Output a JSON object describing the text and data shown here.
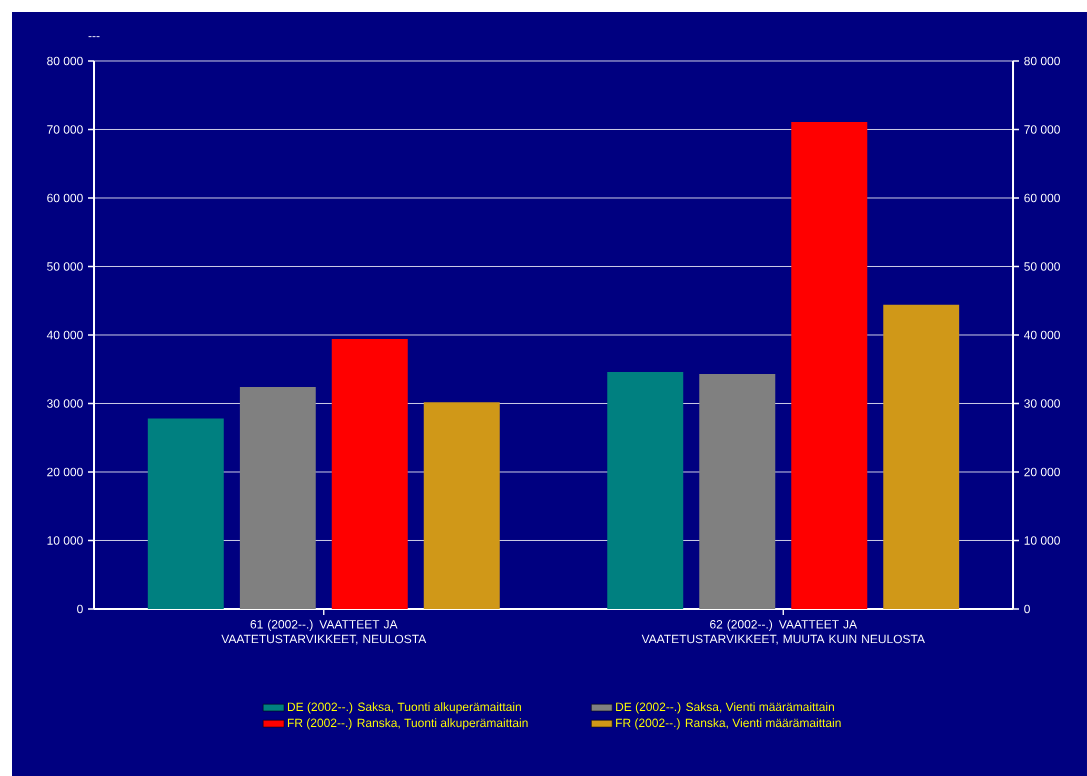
{
  "chart_data": {
    "type": "bar",
    "ylabel": "---",
    "categories": [
      "61 (2002--.) VAATTEET JA VAATETUSTARVIKKEET, NEULOSTA",
      "62 (2002--.) VAATTEET JA VAATETUSTARVIKKEET, MUUTA KUIN NEULOSTA"
    ],
    "series": [
      {
        "name": "DE (2002--.) Saksa, Tuonti alkuperämaittain",
        "color": "#008080",
        "values": [
          27800,
          34600
        ]
      },
      {
        "name": "DE (2002--.) Saksa, Vienti määrämaittain",
        "color": "#808080",
        "values": [
          32400,
          34300
        ]
      },
      {
        "name": "FR (2002--.) Ranska, Tuonti alkuperämaittain",
        "color": "#ff0000",
        "values": [
          39400,
          71100
        ]
      },
      {
        "name": "FR (2002--.) Ranska, Vienti määrämaittain",
        "color": "#d09818",
        "values": [
          30200,
          44400
        ]
      }
    ],
    "ylim": [
      0,
      80000
    ],
    "yticks": [
      {
        "value": 0,
        "label": "0"
      },
      {
        "value": 10000,
        "label": "10 000"
      },
      {
        "value": 20000,
        "label": "20 000"
      },
      {
        "value": 30000,
        "label": "30 000"
      },
      {
        "value": 40000,
        "label": "40 000"
      },
      {
        "value": 50000,
        "label": "50 000"
      },
      {
        "value": 60000,
        "label": "60 000"
      },
      {
        "value": 70000,
        "label": "70 000"
      },
      {
        "value": 80000,
        "label": "80 000"
      }
    ],
    "y2lim": [
      0,
      80000
    ],
    "y2ticks": [
      {
        "value": 0,
        "label": "0"
      },
      {
        "value": 10000,
        "label": "10 000"
      },
      {
        "value": 20000,
        "label": "20 000"
      },
      {
        "value": 30000,
        "label": "30 000"
      },
      {
        "value": 40000,
        "label": "40 000"
      },
      {
        "value": 50000,
        "label": "50 000"
      },
      {
        "value": 60000,
        "label": "60 000"
      },
      {
        "value": 70000,
        "label": "70 000"
      },
      {
        "value": 80000,
        "label": "80 000"
      }
    ],
    "grid": "y",
    "legend": "bottom"
  }
}
